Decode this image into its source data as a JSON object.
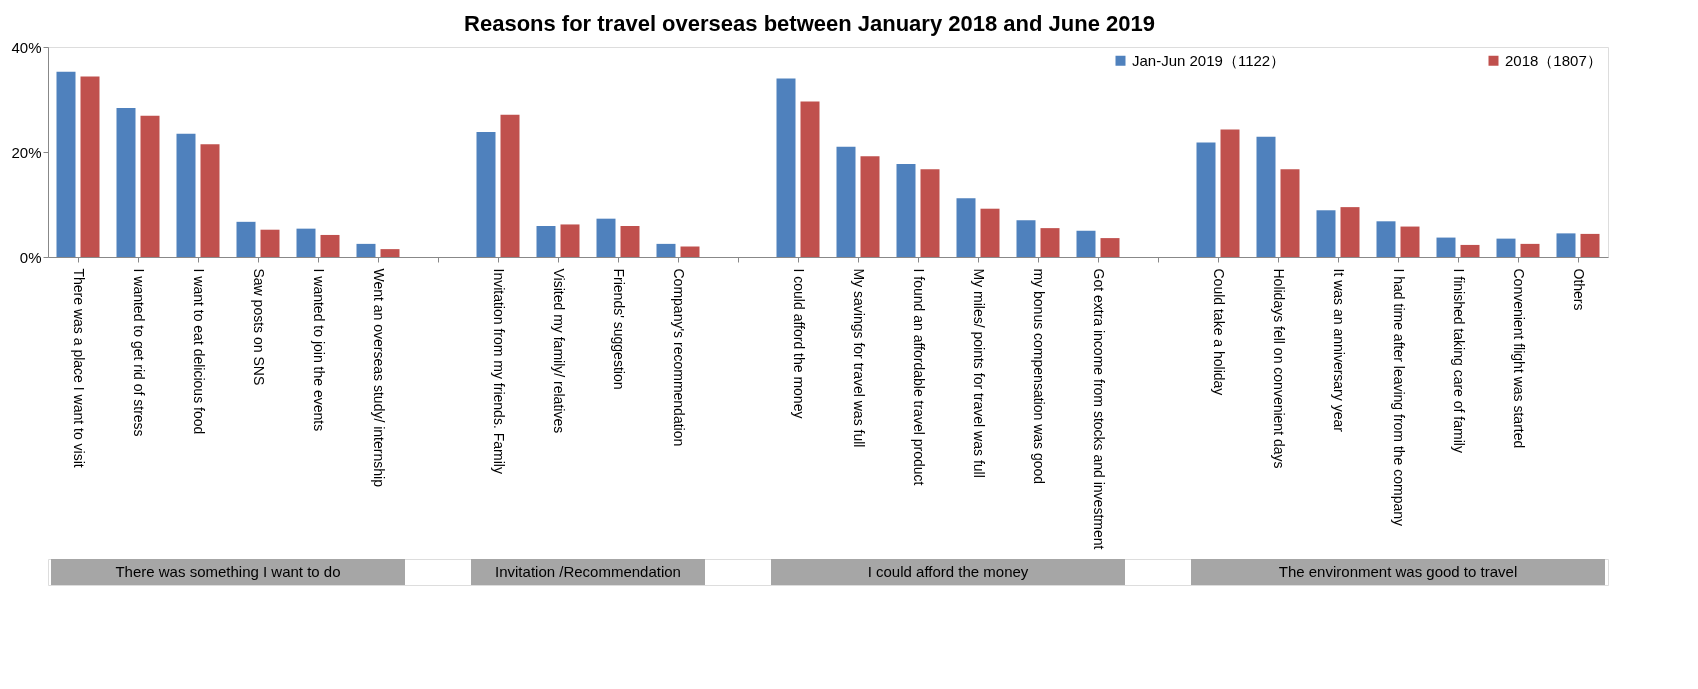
{
  "chart_data": {
    "type": "bar",
    "title": "Reasons for travel overseas between January 2018 and June 2019",
    "categories": [
      "There was a place I want to visit",
      "I wanted to get rid of stress",
      "I want to eat delicious food",
      "Saw posts on SNS",
      "I wanted to join the events",
      "Went an overseas study/ internship",
      null,
      "Invitation from my friends. Family",
      "Visited my family/ relatives",
      "Friends' suggestion",
      "Company's recommendation",
      null,
      "I could afford the money",
      "My savings for travel was full",
      "I found an affordable travel product",
      "My miles/ points for travel was full",
      "my bonus compensation was good",
      "Got extra income from stocks and investment",
      null,
      "Could take a holiday",
      "Holidays fell on convenient days",
      "It was an anniversary year",
      "I had time after leaving from the company",
      "I finished taking care of family",
      "Convenient flight was started",
      "Others"
    ],
    "series": [
      {
        "name": "Jan-Jun 2019（1122）",
        "color": "#4f81bd",
        "values": [
          35.3,
          28.4,
          23.5,
          6.7,
          5.4,
          2.5,
          null,
          23.8,
          5.9,
          7.3,
          2.5,
          null,
          34.0,
          21.0,
          17.7,
          11.2,
          7.0,
          5.0,
          null,
          21.8,
          22.9,
          8.9,
          6.8,
          3.7,
          3.5,
          4.5
        ]
      },
      {
        "name": "2018（1807）",
        "color": "#c0504d",
        "values": [
          34.4,
          26.9,
          21.5,
          5.2,
          4.2,
          1.5,
          null,
          27.1,
          6.2,
          5.9,
          2.0,
          null,
          29.6,
          19.2,
          16.7,
          9.2,
          5.5,
          3.6,
          null,
          24.3,
          16.7,
          9.5,
          5.8,
          2.3,
          2.5,
          4.4
        ]
      }
    ],
    "ylim": [
      0,
      40
    ],
    "yticks": [
      {
        "value": 0,
        "label": "0%"
      },
      {
        "value": 20,
        "label": "20%"
      },
      {
        "value": 40,
        "label": "40%"
      }
    ],
    "annotations": [
      "There was something I want to do",
      "Invitation /Recommendation",
      "I could afford the money",
      "The environment was good to travel"
    ],
    "legend": "top right"
  }
}
